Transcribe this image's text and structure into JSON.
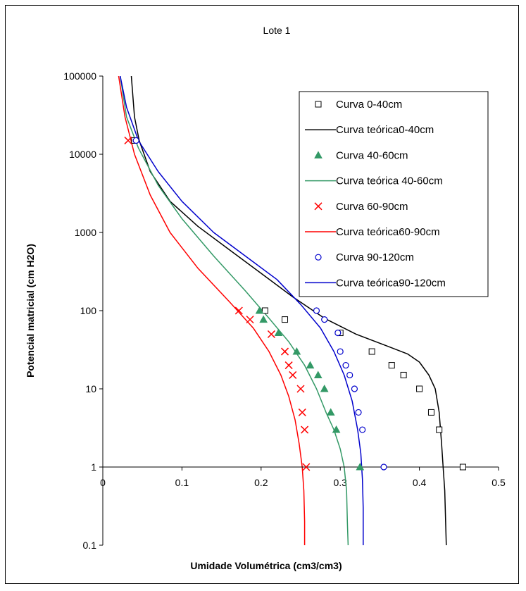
{
  "chart_data": {
    "type": "scatter",
    "title": "Lote  1",
    "xlabel": "Umidade Volumétrica (cm3/cm3)",
    "ylabel": "Potencial matricial (cm H2O)",
    "xlim": [
      0,
      0.5
    ],
    "ylim": [
      0.1,
      100000
    ],
    "yscale": "log",
    "x_ticks": [
      "0",
      "0.1",
      "0.2",
      "0.3",
      "0.4",
      "0.5"
    ],
    "y_ticks": [
      "0.1",
      "1",
      "10",
      "100",
      "1000",
      "10000",
      "100000"
    ],
    "grid": false,
    "legend_position": "top-right",
    "series": [
      {
        "name": "Curva 0-40cm",
        "kind": "points",
        "marker": "square",
        "color": "#000000",
        "x": [
          0.04,
          0.205,
          0.23,
          0.3,
          0.34,
          0.365,
          0.38,
          0.4,
          0.415,
          0.425,
          0.455
        ],
        "y": [
          15000,
          100,
          77,
          52,
          30,
          20,
          15,
          10,
          5,
          3,
          1
        ]
      },
      {
        "name": "Curva teórica0-40cm",
        "kind": "line",
        "color": "#000000",
        "x": [
          0.036,
          0.04,
          0.046,
          0.06,
          0.085,
          0.12,
          0.16,
          0.2,
          0.24,
          0.28,
          0.32,
          0.36,
          0.385,
          0.4,
          0.412,
          0.42,
          0.425,
          0.428,
          0.43,
          0.432,
          0.434
        ],
        "y": [
          100000,
          30000,
          15000,
          6000,
          2500,
          1200,
          600,
          300,
          150,
          80,
          50,
          35,
          28,
          22,
          15,
          10,
          5,
          2,
          1,
          0.5,
          0.1
        ]
      },
      {
        "name": "Curva 40-60cm",
        "kind": "points",
        "marker": "triangle",
        "color": "#339966",
        "x": [
          0.198,
          0.203,
          0.222,
          0.245,
          0.262,
          0.272,
          0.28,
          0.288,
          0.295,
          0.325
        ],
        "y": [
          100,
          77,
          52,
          30,
          20,
          15,
          10,
          5,
          3,
          1
        ]
      },
      {
        "name": "Curva teórica 40-60cm",
        "kind": "line",
        "color": "#339966",
        "x": [
          0.022,
          0.03,
          0.045,
          0.07,
          0.1,
          0.14,
          0.18,
          0.21,
          0.235,
          0.255,
          0.27,
          0.282,
          0.292,
          0.3,
          0.305,
          0.308,
          0.309,
          0.31
        ],
        "y": [
          100000,
          30000,
          12000,
          4000,
          1500,
          500,
          180,
          80,
          40,
          20,
          10,
          5,
          3,
          1.7,
          1,
          0.5,
          0.2,
          0.1
        ]
      },
      {
        "name": "Curva 60-90cm",
        "kind": "points",
        "marker": "x",
        "color": "#ff0000",
        "x": [
          0.032,
          0.172,
          0.186,
          0.213,
          0.23,
          0.235,
          0.24,
          0.25,
          0.252,
          0.255,
          0.257
        ],
        "y": [
          15000,
          100,
          77,
          50,
          30,
          20,
          15,
          10,
          5,
          3,
          1
        ]
      },
      {
        "name": "Curva teórica60-90cm",
        "kind": "line",
        "color": "#ff0000",
        "x": [
          0.02,
          0.028,
          0.04,
          0.06,
          0.085,
          0.12,
          0.16,
          0.19,
          0.21,
          0.225,
          0.235,
          0.243,
          0.248,
          0.252,
          0.254,
          0.255,
          0.255
        ],
        "y": [
          100000,
          30000,
          10000,
          3000,
          1000,
          350,
          130,
          60,
          30,
          15,
          8,
          4,
          2,
          1,
          0.5,
          0.2,
          0.1
        ]
      },
      {
        "name": "Curva 90-120cm",
        "kind": "points",
        "marker": "circle",
        "color": "#0000cc",
        "x": [
          0.042,
          0.27,
          0.28,
          0.297,
          0.3,
          0.307,
          0.312,
          0.318,
          0.323,
          0.328,
          0.355
        ],
        "y": [
          15000,
          100,
          77,
          52,
          30,
          20,
          15,
          10,
          5,
          3,
          1
        ]
      },
      {
        "name": "Curva teórica90-120cm",
        "kind": "line",
        "color": "#0000cc",
        "x": [
          0.022,
          0.03,
          0.045,
          0.07,
          0.1,
          0.14,
          0.18,
          0.22,
          0.25,
          0.275,
          0.292,
          0.305,
          0.315,
          0.322,
          0.326,
          0.328,
          0.329,
          0.329
        ],
        "y": [
          100000,
          40000,
          15000,
          6000,
          2500,
          1000,
          500,
          250,
          120,
          60,
          30,
          15,
          7,
          3,
          1.5,
          0.7,
          0.3,
          0.1
        ]
      }
    ],
    "legend_labels": [
      "Curva 0-40cm",
      "Curva teórica0-40cm",
      "Curva 40-60cm",
      "Curva teórica 40-60cm",
      "Curva 60-90cm",
      "Curva teórica60-90cm",
      "Curva 90-120cm",
      "Curva teórica90-120cm"
    ]
  }
}
